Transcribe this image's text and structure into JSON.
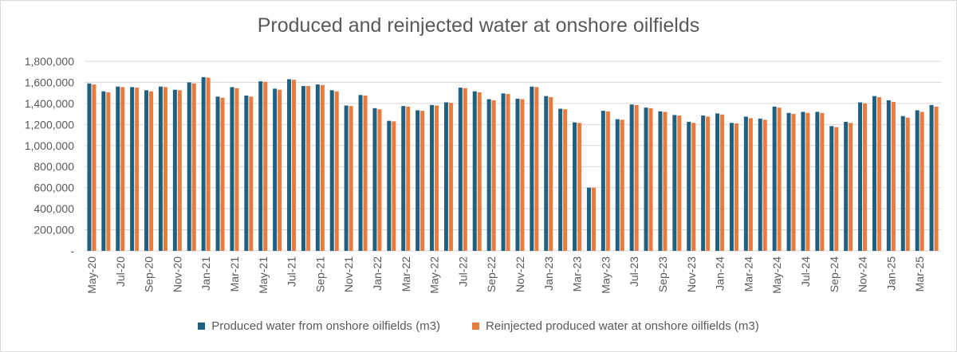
{
  "chart_data": {
    "type": "bar",
    "title": "Produced and reinjected water at onshore oilfields",
    "xlabel": "",
    "ylabel": "",
    "ylim": [
      0,
      1800000
    ],
    "yticks": [
      0,
      200000,
      400000,
      600000,
      800000,
      1000000,
      1200000,
      1400000,
      1600000,
      1800000
    ],
    "ytick_labels": [
      "-",
      "200,000",
      "400,000",
      "600,000",
      "800,000",
      "1,000,000",
      "1,200,000",
      "1,400,000",
      "1,600,000",
      "1,800,000"
    ],
    "grid": true,
    "legend_position": "bottom",
    "categories": [
      "May-20",
      "Jun-20",
      "Jul-20",
      "Aug-20",
      "Sep-20",
      "Oct-20",
      "Nov-20",
      "Dec-20",
      "Jan-21",
      "Feb-21",
      "Mar-21",
      "Apr-21",
      "May-21",
      "Jun-21",
      "Jul-21",
      "Aug-21",
      "Sep-21",
      "Oct-21",
      "Nov-21",
      "Dec-21",
      "Jan-22",
      "Feb-22",
      "Mar-22",
      "Apr-22",
      "May-22",
      "Jun-22",
      "Jul-22",
      "Aug-22",
      "Sep-22",
      "Oct-22",
      "Nov-22",
      "Dec-22",
      "Jan-23",
      "Feb-23",
      "Mar-23",
      "Apr-23",
      "May-23",
      "Jun-23",
      "Jul-23",
      "Aug-23",
      "Sep-23",
      "Oct-23",
      "Nov-23",
      "Dec-23",
      "Jan-24",
      "Feb-24",
      "Mar-24",
      "Apr-24",
      "May-24",
      "Jun-24",
      "Jul-24",
      "Aug-24",
      "Sep-24",
      "Oct-24",
      "Nov-24",
      "Dec-24",
      "Jan-25",
      "Feb-25",
      "Mar-25",
      "Apr-25"
    ],
    "tick_labels": [
      "May-20",
      "Jul-20",
      "Sep-20",
      "Nov-20",
      "Jan-21",
      "Mar-21",
      "May-21",
      "Jul-21",
      "Sep-21",
      "Nov-21",
      "Jan-22",
      "Mar-22",
      "May-22",
      "Jul-22",
      "Sep-22",
      "Nov-22",
      "Jan-23",
      "Mar-23",
      "May-23",
      "Jul-23",
      "Sep-23",
      "Nov-23",
      "Jan-24",
      "Mar-24",
      "May-24",
      "Jul-24",
      "Sep-24",
      "Nov-24",
      "Jan-25",
      "Mar-25"
    ],
    "series": [
      {
        "name": "Produced water from onshore oilfields (m3)",
        "color": "#1f5f7f",
        "values": [
          1590000,
          1515000,
          1560000,
          1555000,
          1525000,
          1560000,
          1530000,
          1600000,
          1650000,
          1465000,
          1555000,
          1475000,
          1610000,
          1540000,
          1630000,
          1565000,
          1580000,
          1525000,
          1380000,
          1480000,
          1355000,
          1235000,
          1375000,
          1335000,
          1385000,
          1410000,
          1550000,
          1515000,
          1440000,
          1495000,
          1445000,
          1560000,
          1470000,
          1350000,
          1220000,
          600000,
          1330000,
          1250000,
          1390000,
          1360000,
          1325000,
          1290000,
          1225000,
          1285000,
          1305000,
          1215000,
          1275000,
          1255000,
          1370000,
          1310000,
          1320000,
          1320000,
          1185000,
          1225000,
          1410000,
          1470000,
          1430000,
          1280000,
          1335000,
          1385000
        ]
      },
      {
        "name": "Reinjected produced water at onshore oilfields (m3)",
        "color": "#e87b3e",
        "values": [
          1580000,
          1505000,
          1555000,
          1550000,
          1515000,
          1555000,
          1525000,
          1590000,
          1645000,
          1455000,
          1545000,
          1465000,
          1605000,
          1530000,
          1625000,
          1565000,
          1575000,
          1515000,
          1375000,
          1475000,
          1345000,
          1230000,
          1370000,
          1330000,
          1380000,
          1405000,
          1545000,
          1505000,
          1430000,
          1490000,
          1440000,
          1555000,
          1460000,
          1345000,
          1215000,
          600000,
          1325000,
          1245000,
          1385000,
          1355000,
          1320000,
          1285000,
          1215000,
          1275000,
          1295000,
          1210000,
          1260000,
          1245000,
          1360000,
          1300000,
          1310000,
          1310000,
          1175000,
          1215000,
          1400000,
          1460000,
          1415000,
          1265000,
          1320000,
          1370000
        ]
      }
    ]
  }
}
